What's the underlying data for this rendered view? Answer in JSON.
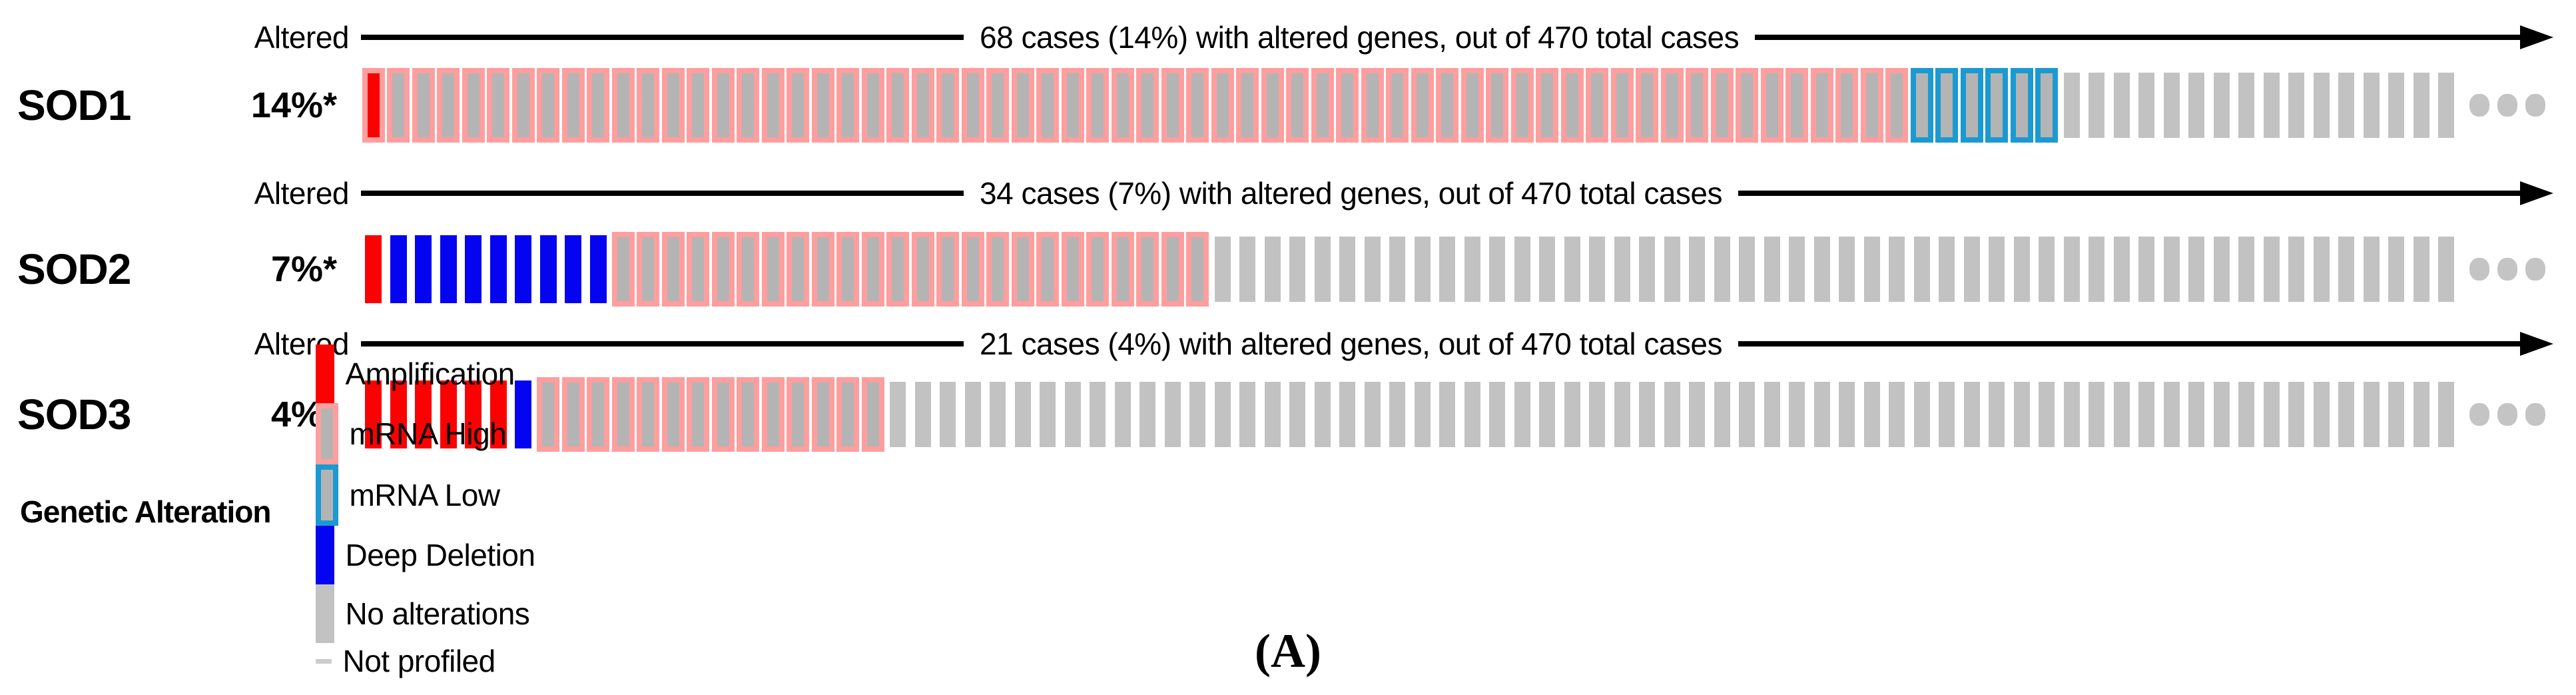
{
  "figure_label": "(A)",
  "colors": {
    "amplification": "#fa0202",
    "deep_deletion": "#0404f0",
    "mrna_high_outline": "#ff9e9e",
    "mrna_low_outline": "#1b9ad2",
    "outlined_inner_gray": "#b4b4b4",
    "no_alteration_gray": "#c2c2c2",
    "not_profiled_gray": "#cccccc",
    "dots_gray": "#c4c4c4",
    "arrow_black": "#000000"
  },
  "tracks": [
    {
      "gene": "SOD1",
      "pct": "14%*",
      "altered_label": "Altered",
      "cases_text": "68 cases (14%) with altered genes, out of 470 total cases",
      "segments": [
        {
          "type": "amp_mrna_high",
          "count": 1
        },
        {
          "type": "mrna_high",
          "count": 61
        },
        {
          "type": "mrna_low",
          "count": 6
        },
        {
          "type": "none",
          "count": 16
        }
      ]
    },
    {
      "gene": "SOD2",
      "pct": "7%*",
      "altered_label": "Altered",
      "cases_text": "34 cases (7%) with altered genes, out of 470 total cases",
      "segments": [
        {
          "type": "amp",
          "count": 1
        },
        {
          "type": "deep_del",
          "count": 9
        },
        {
          "type": "mrna_high",
          "count": 24
        },
        {
          "type": "none",
          "count": 50
        }
      ]
    },
    {
      "gene": "SOD3",
      "pct": "4%*",
      "altered_label": "Altered",
      "cases_text": "21 cases (4%) with altered genes, out of 470 total cases",
      "segments": [
        {
          "type": "amp",
          "count": 6
        },
        {
          "type": "deep_del",
          "count": 1
        },
        {
          "type": "mrna_high",
          "count": 14
        },
        {
          "type": "none",
          "count": 63
        }
      ]
    }
  ],
  "legend": {
    "title": "Genetic Alteration",
    "items": [
      {
        "label": "Amplification",
        "swatch": "amp"
      },
      {
        "label": "mRNA High",
        "swatch": "mrna_high"
      },
      {
        "label": "mRNA Low",
        "swatch": "mrna_low"
      },
      {
        "label": "Deep Deletion",
        "swatch": "deep_del"
      },
      {
        "label": "No alterations",
        "swatch": "none"
      },
      {
        "label": "Not profiled",
        "swatch": "not_profiled"
      }
    ]
  },
  "chart_data": {
    "type": "heatmap",
    "subtype": "oncoprint",
    "title": "",
    "total_cases": 470,
    "legend_position": "bottom",
    "rows": [
      {
        "gene": "SOD1",
        "altered_cases": 68,
        "altered_pct": "14%",
        "header": "68 cases (14%) with altered genes, out of 470 total cases",
        "alteration_counts": {
          "amplification_with_mrna_high": 1,
          "mrna_high": 61,
          "mrna_low": 6,
          "no_alteration_columns_shown": 16
        }
      },
      {
        "gene": "SOD2",
        "altered_cases": 34,
        "altered_pct": "7%",
        "header": "34 cases (7%) with altered genes, out of 470 total cases",
        "alteration_counts": {
          "amplification": 1,
          "deep_deletion": 9,
          "mrna_high": 24,
          "no_alteration_columns_shown": 50
        }
      },
      {
        "gene": "SOD3",
        "altered_cases": 21,
        "altered_pct": "4%",
        "header": "21 cases (4%) with altered genes, out of 470 total cases",
        "alteration_counts": {
          "amplification": 6,
          "deep_deletion": 1,
          "mrna_high": 14,
          "no_alteration_columns_shown": 63
        }
      }
    ],
    "legend_entries": [
      "Amplification",
      "mRNA High",
      "mRNA Low",
      "Deep Deletion",
      "No alterations",
      "Not profiled"
    ],
    "annotations": [
      "Altered",
      "(A)"
    ]
  }
}
